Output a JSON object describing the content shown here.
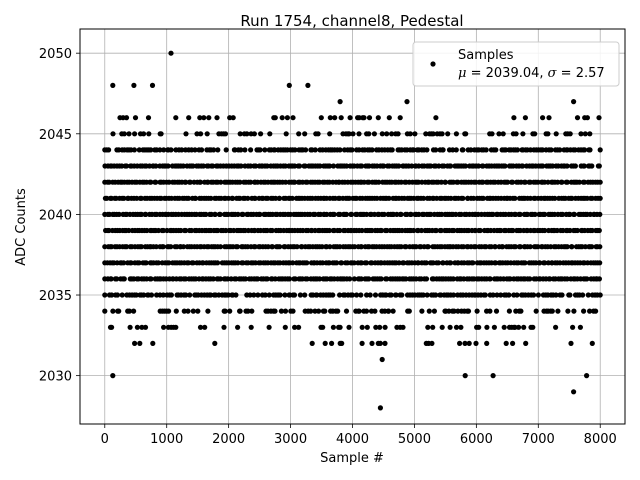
{
  "chart_data": {
    "type": "scatter",
    "title": "Run 1754, channel8, Pedestal",
    "xlabel": "Sample #",
    "ylabel": "ADC Counts",
    "xlim": [
      -400,
      8400
    ],
    "ylim": [
      2027.0,
      2051.5
    ],
    "xticks": [
      0,
      1000,
      2000,
      3000,
      4000,
      5000,
      6000,
      7000,
      8000
    ],
    "yticks": [
      2030,
      2035,
      2040,
      2045,
      2050
    ],
    "grid": true,
    "marker_color": "#000000",
    "legend": {
      "placement": "top-right",
      "series_name": "Samples",
      "mu_symbol": "μ",
      "mu_value": "2039.04",
      "sigma_symbol": "σ",
      "sigma_value": "2.57"
    },
    "series": [
      {
        "name": "Samples",
        "mean": 2039.04,
        "std": 2.57,
        "n_samples": 8000,
        "band_values": [
          2032,
          2033,
          2034,
          2035,
          2036,
          2037,
          2038,
          2039,
          2040,
          2041,
          2042,
          2043,
          2044,
          2045,
          2046
        ],
        "band_density": [
          0.12,
          0.25,
          0.45,
          0.85,
          0.97,
          1.0,
          1.0,
          1.0,
          1.0,
          1.0,
          1.0,
          0.97,
          0.85,
          0.35,
          0.15
        ],
        "outliers": [
          {
            "x": 130,
            "y": 2048
          },
          {
            "x": 130,
            "y": 2030
          },
          {
            "x": 470,
            "y": 2048
          },
          {
            "x": 770,
            "y": 2048
          },
          {
            "x": 1070,
            "y": 2050
          },
          {
            "x": 2980,
            "y": 2048
          },
          {
            "x": 3280,
            "y": 2048
          },
          {
            "x": 3800,
            "y": 2047
          },
          {
            "x": 4450,
            "y": 2028
          },
          {
            "x": 4480,
            "y": 2031
          },
          {
            "x": 4880,
            "y": 2047
          },
          {
            "x": 5820,
            "y": 2030
          },
          {
            "x": 6270,
            "y": 2030
          },
          {
            "x": 7570,
            "y": 2047
          },
          {
            "x": 7570,
            "y": 2029
          },
          {
            "x": 7780,
            "y": 2030
          },
          {
            "x": 7750,
            "y": 2046
          },
          {
            "x": 7980,
            "y": 2046
          }
        ]
      }
    ]
  }
}
